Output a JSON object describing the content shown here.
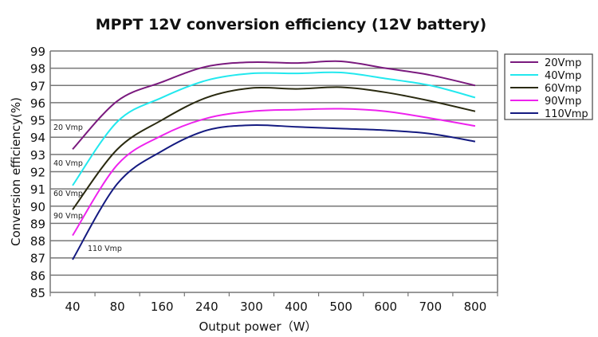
{
  "chart_data": {
    "type": "line",
    "title": "MPPT 12V conversion efficiency (12V battery)",
    "xlabel": "Output power（W）",
    "ylabel": "Conversion efficiency(%)",
    "categories": [
      "40",
      "80",
      "160",
      "240",
      "300",
      "400",
      "500",
      "600",
      "700",
      "800"
    ],
    "ylim": [
      85,
      99
    ],
    "yticks": [
      85,
      86,
      87,
      88,
      89,
      90,
      91,
      92,
      93,
      94,
      95,
      96,
      97,
      98,
      99
    ],
    "grid": true,
    "legend_position": "right",
    "series": [
      {
        "name": "20Vmp",
        "annotation": "20 Vmp",
        "color": "#7a1a7e",
        "values": [
          93.3,
          96.1,
          97.2,
          98.1,
          98.35,
          98.3,
          98.4,
          98.0,
          97.6,
          97.0
        ]
      },
      {
        "name": "40Vmp",
        "annotation": "40 Vmp",
        "color": "#22e8ee",
        "values": [
          91.2,
          94.9,
          96.3,
          97.3,
          97.7,
          97.7,
          97.75,
          97.4,
          97.0,
          96.3
        ]
      },
      {
        "name": "60Vmp",
        "annotation": "60 Vmp",
        "color": "#2a2a10",
        "values": [
          89.8,
          93.3,
          95.0,
          96.3,
          96.85,
          96.8,
          96.9,
          96.6,
          96.1,
          95.5
        ]
      },
      {
        "name": "90Vmp",
        "annotation": "90 Vmp",
        "color": "#ee22ee",
        "values": [
          88.3,
          92.4,
          94.1,
          95.1,
          95.5,
          95.6,
          95.65,
          95.5,
          95.1,
          94.65
        ]
      },
      {
        "name": "110Vmp",
        "annotation": "110 Vmp",
        "color": "#141a80",
        "values": [
          86.9,
          91.3,
          93.2,
          94.4,
          94.7,
          94.6,
          94.5,
          94.4,
          94.2,
          93.75
        ]
      }
    ]
  }
}
